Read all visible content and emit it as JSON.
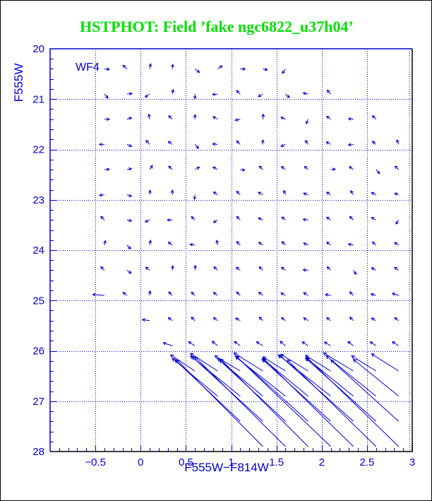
{
  "page": {
    "background": "#ffffff",
    "frame_color": "#000000"
  },
  "title": {
    "text": "HSTPHOT: Field ’fake ngc6822_u37h04’",
    "color": "#00dd00"
  },
  "chart_data": {
    "type": "scatter",
    "subtype": "quiver-vector-field",
    "title": "HSTPHOT: Field ’fake ngc6822_u37h04’",
    "xlabel": "F555W−F814W",
    "ylabel": "F555W",
    "xlim": [
      -1,
      3
    ],
    "ylim": [
      28,
      20
    ],
    "y_axis_inverted": true,
    "grid": "dotted",
    "grid_x": [
      -0.5,
      0,
      0.5,
      1,
      1.5,
      2,
      2.5,
      3
    ],
    "grid_y": [
      21,
      22,
      23,
      24,
      25,
      26,
      27
    ],
    "x_major_ticks": [
      -0.5,
      0,
      0.5,
      1,
      1.5,
      2,
      2.5,
      3
    ],
    "x_tick_labels": [
      "−0.5",
      "0",
      "0.5",
      "1",
      "1.5",
      "2",
      "2.5",
      "3"
    ],
    "x_minor_step": 0.1,
    "y_major_ticks": [
      21,
      22,
      23,
      24,
      25,
      26,
      27
    ],
    "y_tick_labels": [
      "20",
      "21",
      "22",
      "23",
      "24",
      "25",
      "26",
      "27",
      "28"
    ],
    "y_label_values": [
      20,
      21,
      22,
      23,
      24,
      25,
      26,
      27,
      28
    ],
    "y_minor_step": 0.2,
    "inset_label": {
      "text": "WF4"
    },
    "colors": {
      "axis_blue": "#0000cc",
      "frame_black": "#000000",
      "title_green": "#00dd00"
    },
    "arrows_small": [
      [
        -0.4,
        20.4,
        0.055,
        0.01
      ],
      [
        -0.15,
        20.4,
        -0.045,
        -0.07
      ],
      [
        0.1,
        20.4,
        0.01,
        -0.1
      ],
      [
        0.35,
        20.4,
        0.005,
        -0.09
      ],
      [
        0.6,
        20.4,
        0.05,
        0.07
      ],
      [
        0.85,
        20.4,
        0.05,
        -0.06
      ],
      [
        1.1,
        20.4,
        0.055,
        0.005
      ],
      [
        1.35,
        20.4,
        0.05,
        0.02
      ],
      [
        1.6,
        20.4,
        -0.035,
        0.09
      ],
      [
        -0.4,
        20.9,
        0.04,
        0.08
      ],
      [
        -0.15,
        20.9,
        0.055,
        -0.01
      ],
      [
        0.1,
        20.9,
        -0.05,
        0.06
      ],
      [
        0.35,
        20.9,
        0.01,
        -0.09
      ],
      [
        0.6,
        20.9,
        0.0,
        0.09
      ],
      [
        0.85,
        20.9,
        -0.055,
        0.01
      ],
      [
        1.1,
        20.9,
        -0.04,
        -0.07
      ],
      [
        1.35,
        20.9,
        -0.05,
        0.05
      ],
      [
        1.6,
        20.9,
        0.045,
        0.07
      ],
      [
        1.85,
        20.9,
        -0.055,
        -0.02
      ],
      [
        2.1,
        20.9,
        -0.04,
        -0.08
      ],
      [
        -0.4,
        21.4,
        0.055,
        0.0
      ],
      [
        -0.15,
        21.4,
        0.05,
        -0.03
      ],
      [
        0.1,
        21.4,
        -0.01,
        -0.1
      ],
      [
        0.35,
        21.4,
        -0.04,
        -0.07
      ],
      [
        0.6,
        21.4,
        0.0,
        -0.09
      ],
      [
        0.85,
        21.4,
        -0.05,
        -0.05
      ],
      [
        1.1,
        21.4,
        -0.055,
        0.02
      ],
      [
        1.35,
        21.4,
        0.005,
        -0.1
      ],
      [
        1.6,
        21.4,
        -0.05,
        -0.04
      ],
      [
        1.85,
        21.4,
        -0.02,
        0.09
      ],
      [
        2.1,
        21.4,
        -0.045,
        -0.06
      ],
      [
        2.35,
        21.4,
        -0.055,
        -0.01
      ],
      [
        2.6,
        21.4,
        -0.04,
        -0.07
      ],
      [
        -0.4,
        21.9,
        -0.055,
        0.0
      ],
      [
        -0.15,
        21.9,
        0.05,
        0.04
      ],
      [
        0.1,
        21.9,
        -0.04,
        -0.08
      ],
      [
        0.35,
        21.9,
        -0.045,
        -0.06
      ],
      [
        0.6,
        21.9,
        0.04,
        0.08
      ],
      [
        0.85,
        21.9,
        -0.055,
        -0.01
      ],
      [
        1.1,
        21.9,
        -0.04,
        -0.07
      ],
      [
        1.35,
        21.9,
        0.0,
        -0.09
      ],
      [
        1.6,
        21.9,
        -0.05,
        0.04
      ],
      [
        1.85,
        21.9,
        -0.03,
        -0.08
      ],
      [
        2.1,
        21.9,
        -0.05,
        -0.05
      ],
      [
        2.35,
        21.9,
        -0.055,
        0.01
      ],
      [
        2.6,
        21.9,
        -0.04,
        -0.06
      ],
      [
        2.85,
        21.9,
        -0.02,
        -0.09
      ],
      [
        -0.4,
        22.4,
        0.055,
        -0.005
      ],
      [
        -0.15,
        22.4,
        0.05,
        -0.02
      ],
      [
        0.1,
        22.4,
        0.03,
        -0.08
      ],
      [
        0.35,
        22.4,
        -0.04,
        -0.07
      ],
      [
        0.6,
        22.4,
        0.05,
        -0.05
      ],
      [
        0.85,
        22.4,
        -0.05,
        -0.05
      ],
      [
        1.1,
        22.4,
        0.05,
        0.01
      ],
      [
        1.35,
        22.4,
        -0.04,
        -0.07
      ],
      [
        1.6,
        22.4,
        -0.045,
        -0.06
      ],
      [
        1.85,
        22.4,
        -0.04,
        -0.065
      ],
      [
        2.1,
        22.4,
        0.05,
        -0.01
      ],
      [
        2.35,
        22.4,
        -0.045,
        -0.06
      ],
      [
        2.6,
        22.4,
        0.04,
        0.08
      ],
      [
        2.85,
        22.4,
        -0.04,
        -0.07
      ],
      [
        -0.4,
        22.9,
        -0.055,
        0.01
      ],
      [
        -0.15,
        22.9,
        0.05,
        0.03
      ],
      [
        0.1,
        22.9,
        0.005,
        -0.09
      ],
      [
        0.35,
        22.9,
        0.0,
        -0.09
      ],
      [
        0.6,
        22.9,
        -0.005,
        0.09
      ],
      [
        0.85,
        22.9,
        -0.045,
        -0.055
      ],
      [
        1.1,
        22.9,
        -0.04,
        -0.07
      ],
      [
        1.35,
        22.9,
        -0.05,
        -0.05
      ],
      [
        1.6,
        22.9,
        -0.02,
        -0.085
      ],
      [
        1.85,
        22.9,
        -0.05,
        -0.03
      ],
      [
        2.1,
        22.9,
        -0.045,
        -0.05
      ],
      [
        2.35,
        22.9,
        -0.03,
        -0.08
      ],
      [
        2.6,
        22.9,
        -0.05,
        -0.045
      ],
      [
        2.85,
        22.9,
        -0.045,
        -0.03
      ],
      [
        -0.4,
        23.4,
        -0.04,
        -0.07
      ],
      [
        -0.15,
        23.4,
        0.05,
        0.02
      ],
      [
        0.1,
        23.4,
        -0.05,
        0.04
      ],
      [
        0.35,
        23.4,
        -0.055,
        0.0
      ],
      [
        0.6,
        23.4,
        -0.04,
        -0.065
      ],
      [
        0.85,
        23.4,
        -0.045,
        0.05
      ],
      [
        1.1,
        23.4,
        -0.04,
        -0.07
      ],
      [
        1.35,
        23.4,
        -0.05,
        -0.04
      ],
      [
        1.6,
        23.4,
        -0.04,
        -0.06
      ],
      [
        1.85,
        23.4,
        -0.055,
        -0.01
      ],
      [
        2.1,
        23.4,
        -0.045,
        -0.055
      ],
      [
        2.35,
        23.4,
        -0.04,
        -0.07
      ],
      [
        2.6,
        23.4,
        -0.05,
        -0.05
      ],
      [
        2.85,
        23.4,
        -0.03,
        0.08
      ],
      [
        -0.4,
        23.9,
        0.01,
        -0.09
      ],
      [
        -0.15,
        23.9,
        0.04,
        0.075
      ],
      [
        0.1,
        23.9,
        0.01,
        -0.095
      ],
      [
        0.35,
        23.9,
        -0.045,
        -0.06
      ],
      [
        0.6,
        23.9,
        -0.055,
        -0.015
      ],
      [
        0.85,
        23.9,
        -0.01,
        -0.095
      ],
      [
        1.1,
        23.9,
        -0.04,
        -0.07
      ],
      [
        1.35,
        23.9,
        -0.045,
        -0.055
      ],
      [
        1.6,
        23.9,
        -0.04,
        -0.07
      ],
      [
        1.85,
        23.9,
        -0.05,
        -0.04
      ],
      [
        2.1,
        23.9,
        -0.045,
        -0.06
      ],
      [
        2.35,
        23.9,
        -0.055,
        -0.02
      ],
      [
        2.6,
        23.9,
        -0.04,
        -0.065
      ],
      [
        2.85,
        23.9,
        -0.045,
        -0.05
      ],
      [
        -0.4,
        24.4,
        -0.04,
        -0.07
      ],
      [
        -0.15,
        24.4,
        0.045,
        0.06
      ],
      [
        0.1,
        24.4,
        -0.045,
        -0.06
      ],
      [
        0.35,
        24.4,
        0.005,
        -0.09
      ],
      [
        0.6,
        24.4,
        0.005,
        -0.095
      ],
      [
        0.85,
        24.4,
        -0.04,
        -0.07
      ],
      [
        1.1,
        24.4,
        -0.045,
        -0.06
      ],
      [
        1.35,
        24.4,
        -0.04,
        -0.07
      ],
      [
        1.6,
        24.4,
        -0.045,
        -0.06
      ],
      [
        1.85,
        24.4,
        -0.055,
        -0.01
      ],
      [
        2.1,
        24.4,
        -0.04,
        -0.07
      ],
      [
        2.35,
        24.4,
        0.03,
        0.08
      ],
      [
        2.6,
        24.4,
        -0.05,
        -0.05
      ],
      [
        2.85,
        24.4,
        -0.045,
        -0.06
      ],
      [
        -0.4,
        24.9,
        -0.13,
        -0.02
      ],
      [
        -0.15,
        24.9,
        -0.045,
        -0.06
      ],
      [
        0.1,
        24.9,
        0.005,
        -0.09
      ],
      [
        0.35,
        24.9,
        -0.04,
        -0.07
      ],
      [
        0.6,
        24.9,
        -0.04,
        -0.065
      ],
      [
        0.85,
        24.9,
        -0.045,
        -0.06
      ],
      [
        1.1,
        24.9,
        -0.04,
        -0.07
      ],
      [
        1.35,
        24.9,
        -0.045,
        -0.065
      ],
      [
        1.6,
        24.9,
        -0.05,
        -0.05
      ],
      [
        1.85,
        24.9,
        -0.05,
        -0.055
      ],
      [
        2.1,
        24.9,
        -0.06,
        -0.02
      ],
      [
        2.35,
        24.9,
        -0.04,
        -0.07
      ],
      [
        2.6,
        24.9,
        -0.055,
        -0.03
      ],
      [
        2.85,
        24.9,
        -0.07,
        -0.04
      ],
      [
        0.1,
        25.4,
        -0.08,
        -0.02
      ],
      [
        0.35,
        25.4,
        -0.045,
        -0.06
      ],
      [
        0.6,
        25.4,
        -0.04,
        -0.07
      ],
      [
        0.85,
        25.4,
        -0.045,
        -0.06
      ],
      [
        1.1,
        25.4,
        -0.05,
        -0.05
      ],
      [
        1.35,
        25.4,
        -0.04,
        -0.07
      ],
      [
        1.6,
        25.4,
        -0.045,
        -0.06
      ],
      [
        1.85,
        25.4,
        -0.05,
        -0.055
      ],
      [
        2.1,
        25.4,
        -0.045,
        -0.06
      ],
      [
        2.35,
        25.4,
        -0.04,
        -0.07
      ],
      [
        2.6,
        25.4,
        -0.05,
        -0.05
      ],
      [
        2.85,
        25.4,
        -0.045,
        -0.06
      ],
      [
        0.35,
        25.9,
        -0.1,
        -0.06
      ],
      [
        0.6,
        25.9,
        -0.07,
        -0.08
      ],
      [
        0.85,
        25.9,
        -0.06,
        -0.09
      ],
      [
        1.1,
        25.9,
        -0.065,
        -0.085
      ],
      [
        1.35,
        25.9,
        -0.07,
        -0.08
      ],
      [
        1.6,
        25.9,
        -0.06,
        -0.09
      ],
      [
        1.85,
        25.9,
        -0.065,
        -0.08
      ],
      [
        2.1,
        25.9,
        -0.07,
        -0.075
      ],
      [
        2.35,
        25.9,
        -0.06,
        -0.085
      ],
      [
        2.6,
        25.9,
        -0.065,
        -0.08
      ],
      [
        2.85,
        25.9,
        -0.07,
        -0.08
      ]
    ],
    "arrows_faint_bias": [
      [
        0.6,
        26.4,
        -0.27,
        -0.32
      ],
      [
        0.85,
        26.4,
        -0.3,
        -0.35
      ],
      [
        1.1,
        26.4,
        -0.28,
        -0.3
      ],
      [
        1.35,
        26.4,
        -0.32,
        -0.36
      ],
      [
        1.6,
        26.4,
        -0.25,
        -0.28
      ],
      [
        1.85,
        26.4,
        -0.3,
        -0.33
      ],
      [
        2.1,
        26.4,
        -0.28,
        -0.31
      ],
      [
        2.35,
        26.4,
        -0.33,
        -0.36
      ],
      [
        2.6,
        26.4,
        -0.27,
        -0.3
      ],
      [
        2.85,
        26.4,
        -0.3,
        -0.34
      ],
      [
        0.85,
        26.9,
        -0.5,
        -0.75
      ],
      [
        1.1,
        26.9,
        -0.55,
        -0.8
      ],
      [
        1.35,
        26.9,
        -0.48,
        -0.72
      ],
      [
        1.6,
        26.9,
        -0.55,
        -0.78
      ],
      [
        1.85,
        26.9,
        -0.5,
        -0.74
      ],
      [
        2.1,
        26.9,
        -0.58,
        -0.82
      ],
      [
        2.35,
        26.9,
        -0.52,
        -0.76
      ],
      [
        2.6,
        26.9,
        -0.55,
        -0.8
      ],
      [
        2.85,
        26.9,
        -0.5,
        -0.73
      ],
      [
        1.1,
        27.4,
        -0.72,
        -1.22
      ],
      [
        1.35,
        27.4,
        -0.78,
        -1.28
      ],
      [
        1.6,
        27.4,
        -0.75,
        -1.25
      ],
      [
        1.85,
        27.4,
        -0.8,
        -1.3
      ],
      [
        2.1,
        27.4,
        -0.76,
        -1.24
      ],
      [
        2.35,
        27.4,
        -0.82,
        -1.32
      ],
      [
        2.6,
        27.4,
        -0.78,
        -1.26
      ],
      [
        2.85,
        27.4,
        -0.75,
        -1.22
      ],
      [
        1.35,
        27.9,
        -0.95,
        -1.72
      ],
      [
        1.6,
        27.9,
        -1.0,
        -1.78
      ],
      [
        1.85,
        27.9,
        -0.97,
        -1.74
      ],
      [
        2.1,
        27.9,
        -1.05,
        -1.8
      ],
      [
        2.35,
        27.9,
        -1.0,
        -1.76
      ],
      [
        2.6,
        27.9,
        -0.98,
        -1.72
      ],
      [
        2.85,
        27.9,
        -1.02,
        -1.78
      ]
    ]
  }
}
